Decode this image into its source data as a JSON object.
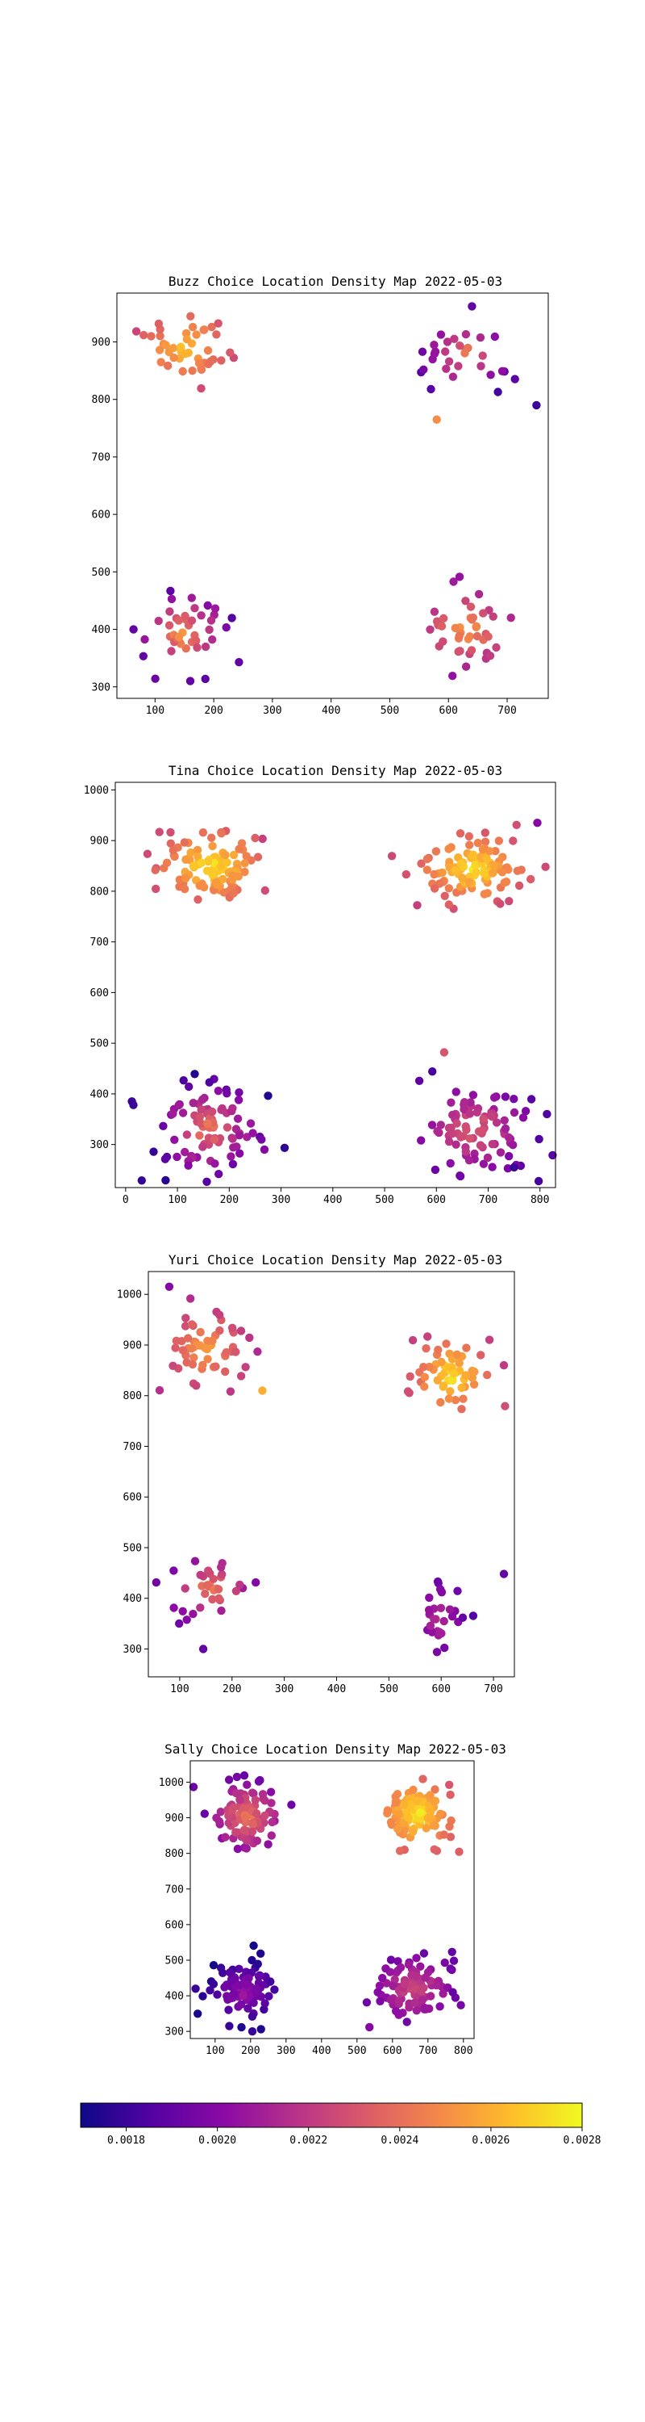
{
  "colormap": {
    "name": "plasma",
    "min": 0.0017,
    "max": 0.0028,
    "stops": [
      "#0d0887",
      "#5402a3",
      "#8b0aa5",
      "#b83289",
      "#db5c68",
      "#f48849",
      "#febd2a",
      "#f0f921"
    ],
    "ticks": [
      "0.0018",
      "0.0020",
      "0.0022",
      "0.0024",
      "0.0026",
      "0.0028"
    ]
  },
  "chart_data": [
    {
      "type": "scatter",
      "title": "Buzz Choice Location Density Map 2022-05-03",
      "xlim": [
        35,
        770
      ],
      "ylim": [
        280,
        985
      ],
      "xticks": [
        "100",
        "200",
        "300",
        "400",
        "500",
        "600",
        "700"
      ],
      "yticks": [
        "300",
        "400",
        "500",
        "600",
        "700",
        "800",
        "900"
      ],
      "clusters": [
        {
          "cx": 150,
          "cy": 890,
          "sx": 35,
          "sy": 30,
          "n": 45,
          "d0": 0.0022,
          "d1": 0.0027,
          "seed": 11
        },
        {
          "cx": 630,
          "cy": 880,
          "sx": 35,
          "sy": 30,
          "n": 30,
          "d0": 0.0018,
          "d1": 0.0025,
          "seed": 12
        },
        {
          "cx": 150,
          "cy": 390,
          "sx": 35,
          "sy": 35,
          "n": 45,
          "d0": 0.0018,
          "d1": 0.0026,
          "seed": 13
        },
        {
          "cx": 630,
          "cy": 400,
          "sx": 35,
          "sy": 30,
          "n": 45,
          "d0": 0.002,
          "d1": 0.0026,
          "seed": 14
        }
      ],
      "points": [
        {
          "x": 750,
          "y": 790,
          "d": 0.0018
        },
        {
          "x": 580,
          "y": 765,
          "d": 0.0025
        },
        {
          "x": 640,
          "y": 962,
          "d": 0.0019
        },
        {
          "x": 160,
          "y": 310,
          "d": 0.0019
        }
      ]
    },
    {
      "type": "scatter",
      "title": "Tina Choice Location Density Map 2022-05-03",
      "xlim": [
        -20,
        830
      ],
      "ylim": [
        215,
        1015
      ],
      "xticks": [
        "0",
        "100",
        "200",
        "300",
        "400",
        "500",
        "600",
        "700",
        "800"
      ],
      "yticks": [
        "300",
        "400",
        "500",
        "600",
        "700",
        "800",
        "900",
        "1000"
      ],
      "clusters": [
        {
          "cx": 165,
          "cy": 850,
          "sx": 50,
          "sy": 35,
          "n": 110,
          "d0": 0.0022,
          "d1": 0.0028,
          "seed": 21
        },
        {
          "cx": 670,
          "cy": 845,
          "sx": 50,
          "sy": 35,
          "n": 110,
          "d0": 0.0022,
          "d1": 0.0028,
          "seed": 22
        },
        {
          "cx": 160,
          "cy": 330,
          "sx": 50,
          "sy": 45,
          "n": 95,
          "d0": 0.0017,
          "d1": 0.0025,
          "seed": 23
        },
        {
          "cx": 670,
          "cy": 330,
          "sx": 55,
          "sy": 45,
          "n": 95,
          "d0": 0.0018,
          "d1": 0.0024,
          "seed": 24
        }
      ],
      "points": [
        {
          "x": 12,
          "y": 385,
          "d": 0.0018
        },
        {
          "x": 15,
          "y": 378,
          "d": 0.0018
        },
        {
          "x": 795,
          "y": 935,
          "d": 0.002
        },
        {
          "x": 750,
          "y": 255,
          "d": 0.0018
        },
        {
          "x": 615,
          "y": 482,
          "d": 0.0023
        },
        {
          "x": 268,
          "y": 290,
          "d": 0.002
        }
      ]
    },
    {
      "type": "scatter",
      "title": "Yuri Choice Location Density Map 2022-05-03",
      "xlim": [
        40,
        740
      ],
      "ylim": [
        245,
        1045
      ],
      "xticks": [
        "100",
        "200",
        "300",
        "400",
        "500",
        "600",
        "700"
      ],
      "yticks": [
        "300",
        "400",
        "500",
        "600",
        "700",
        "800",
        "900",
        "1000"
      ],
      "clusters": [
        {
          "cx": 150,
          "cy": 890,
          "sx": 40,
          "sy": 40,
          "n": 60,
          "d0": 0.0021,
          "d1": 0.0026,
          "seed": 31
        },
        {
          "cx": 620,
          "cy": 840,
          "sx": 35,
          "sy": 35,
          "n": 60,
          "d0": 0.0022,
          "d1": 0.0028,
          "seed": 32
        },
        {
          "cx": 160,
          "cy": 420,
          "sx": 35,
          "sy": 30,
          "n": 35,
          "d0": 0.0019,
          "d1": 0.0025,
          "seed": 33
        },
        {
          "cx": 595,
          "cy": 360,
          "sx": 25,
          "sy": 40,
          "n": 30,
          "d0": 0.0018,
          "d1": 0.0022,
          "seed": 34
        }
      ],
      "points": [
        {
          "x": 80,
          "y": 1015,
          "d": 0.002
        },
        {
          "x": 720,
          "y": 448,
          "d": 0.0019
        },
        {
          "x": 720,
          "y": 860,
          "d": 0.0022
        },
        {
          "x": 145,
          "y": 300,
          "d": 0.0019
        },
        {
          "x": 258,
          "y": 810,
          "d": 0.0026
        }
      ]
    },
    {
      "type": "scatter",
      "title": "Sally Choice Location Density Map 2022-05-03",
      "xlim": [
        30,
        830
      ],
      "ylim": [
        280,
        1060
      ],
      "xticks": [
        "100",
        "200",
        "300",
        "400",
        "500",
        "600",
        "700",
        "800"
      ],
      "yticks": [
        "300",
        "400",
        "500",
        "600",
        "700",
        "800",
        "900",
        "1000"
      ],
      "clusters": [
        {
          "cx": 190,
          "cy": 900,
          "sx": 45,
          "sy": 45,
          "n": 110,
          "d0": 0.0019,
          "d1": 0.0025,
          "seed": 41
        },
        {
          "cx": 670,
          "cy": 910,
          "sx": 45,
          "sy": 45,
          "n": 110,
          "d0": 0.0023,
          "d1": 0.0028,
          "seed": 42
        },
        {
          "cx": 180,
          "cy": 410,
          "sx": 45,
          "sy": 40,
          "n": 90,
          "d0": 0.0017,
          "d1": 0.0021,
          "seed": 43
        },
        {
          "cx": 660,
          "cy": 420,
          "sx": 50,
          "sy": 40,
          "n": 100,
          "d0": 0.0019,
          "d1": 0.0023,
          "seed": 44
        }
      ],
      "points": [
        {
          "x": 45,
          "y": 420,
          "d": 0.0018
        },
        {
          "x": 535,
          "y": 312,
          "d": 0.002
        },
        {
          "x": 140,
          "y": 315,
          "d": 0.0018
        },
        {
          "x": 205,
          "y": 300,
          "d": 0.0018
        },
        {
          "x": 770,
          "y": 410,
          "d": 0.0019
        }
      ]
    }
  ]
}
